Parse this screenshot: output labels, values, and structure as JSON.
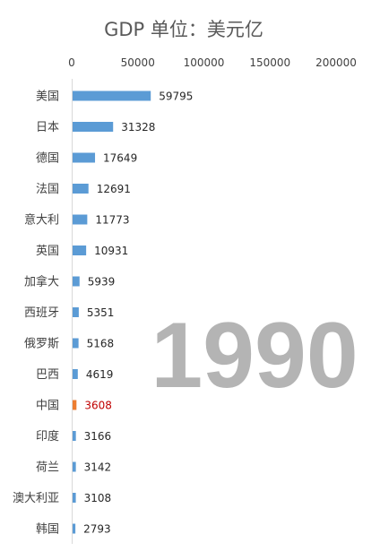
{
  "chart_data": {
    "type": "bar",
    "orientation": "horizontal",
    "title": "GDP  单位：美元亿",
    "xlim": [
      0,
      200000
    ],
    "xticks": [
      "0",
      "50000",
      "100000",
      "150000",
      "200000"
    ],
    "x_axis_position": "top",
    "grid": false,
    "categories": [
      "美国",
      "日本",
      "德国",
      "法国",
      "意大利",
      "英国",
      "加拿大",
      "西班牙",
      "俄罗斯",
      "巴西",
      "中国",
      "印度",
      "荷兰",
      "澳大利亚",
      "韩国"
    ],
    "values": [
      59795,
      31328,
      17649,
      12691,
      11773,
      10931,
      5939,
      5351,
      5168,
      4619,
      3608,
      3166,
      3142,
      3108,
      2793
    ],
    "highlight_category": "中国",
    "bar_color": "#5b9bd5",
    "highlight_color": "#ed7d31",
    "highlight_label_color": "#c00000",
    "watermark": "1990"
  }
}
